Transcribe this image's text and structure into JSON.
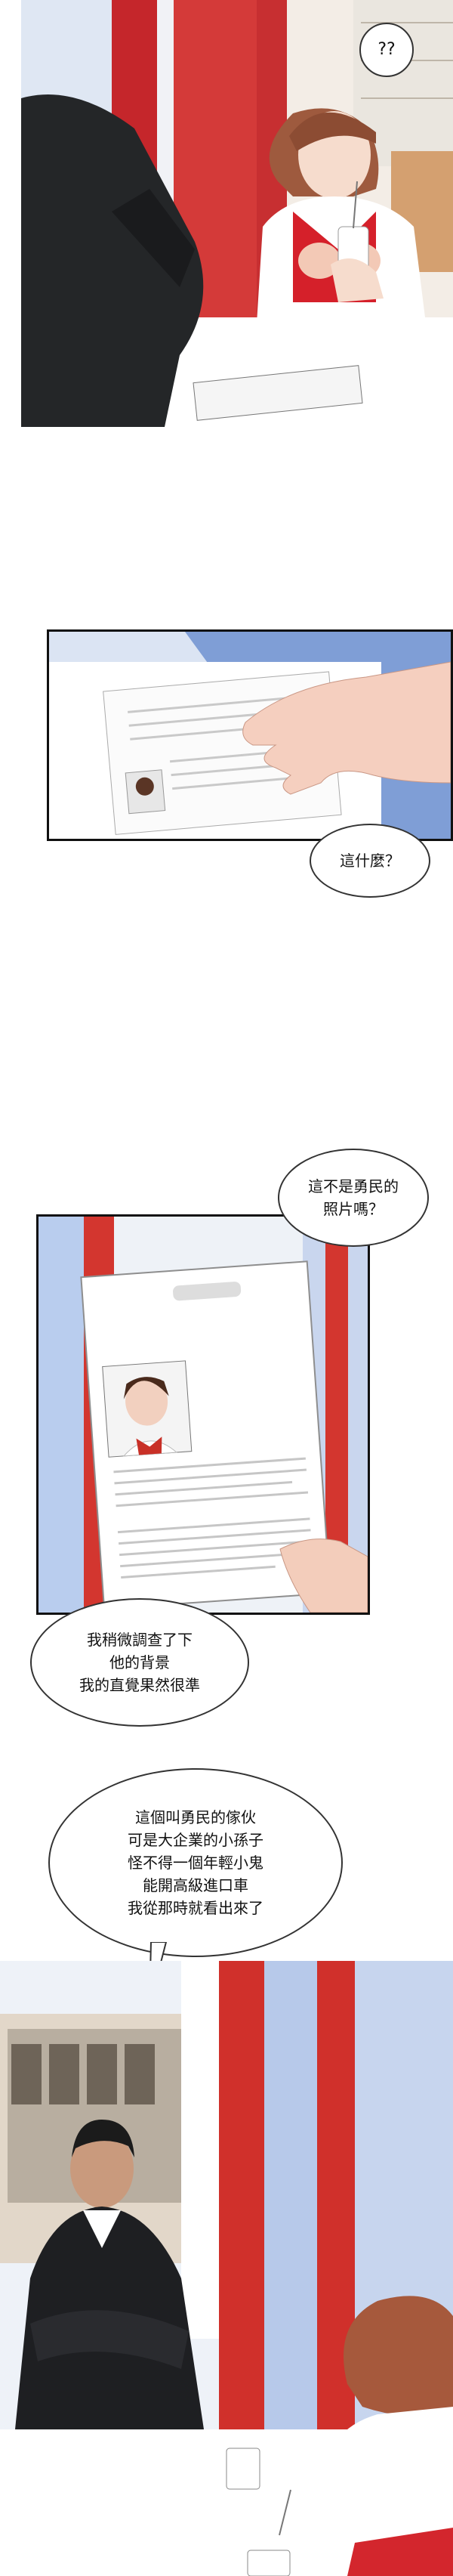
{
  "comic": {
    "panels": [
      {
        "id": "panel-1",
        "description": "woman at table with drink, man in suit"
      },
      {
        "id": "panel-2",
        "description": "hand reaching for document"
      },
      {
        "id": "panel-3",
        "description": "document with photo"
      },
      {
        "id": "panel-4",
        "description": "man in suit at restaurant with woman"
      }
    ],
    "bubbles": {
      "confused": "??",
      "what_is_this": "這什麼？",
      "isnt_this_photo": "這不是勇民的\n照片嗎？",
      "investigated": "我稍微調查了下\n他的背景\n我的直覺果然很準",
      "explanation": "這個叫勇民的傢伙\n可是大企業的小孫子\n怪不得一個年輕小鬼\n能開高級進口車\n我從那時就看出來了"
    }
  }
}
